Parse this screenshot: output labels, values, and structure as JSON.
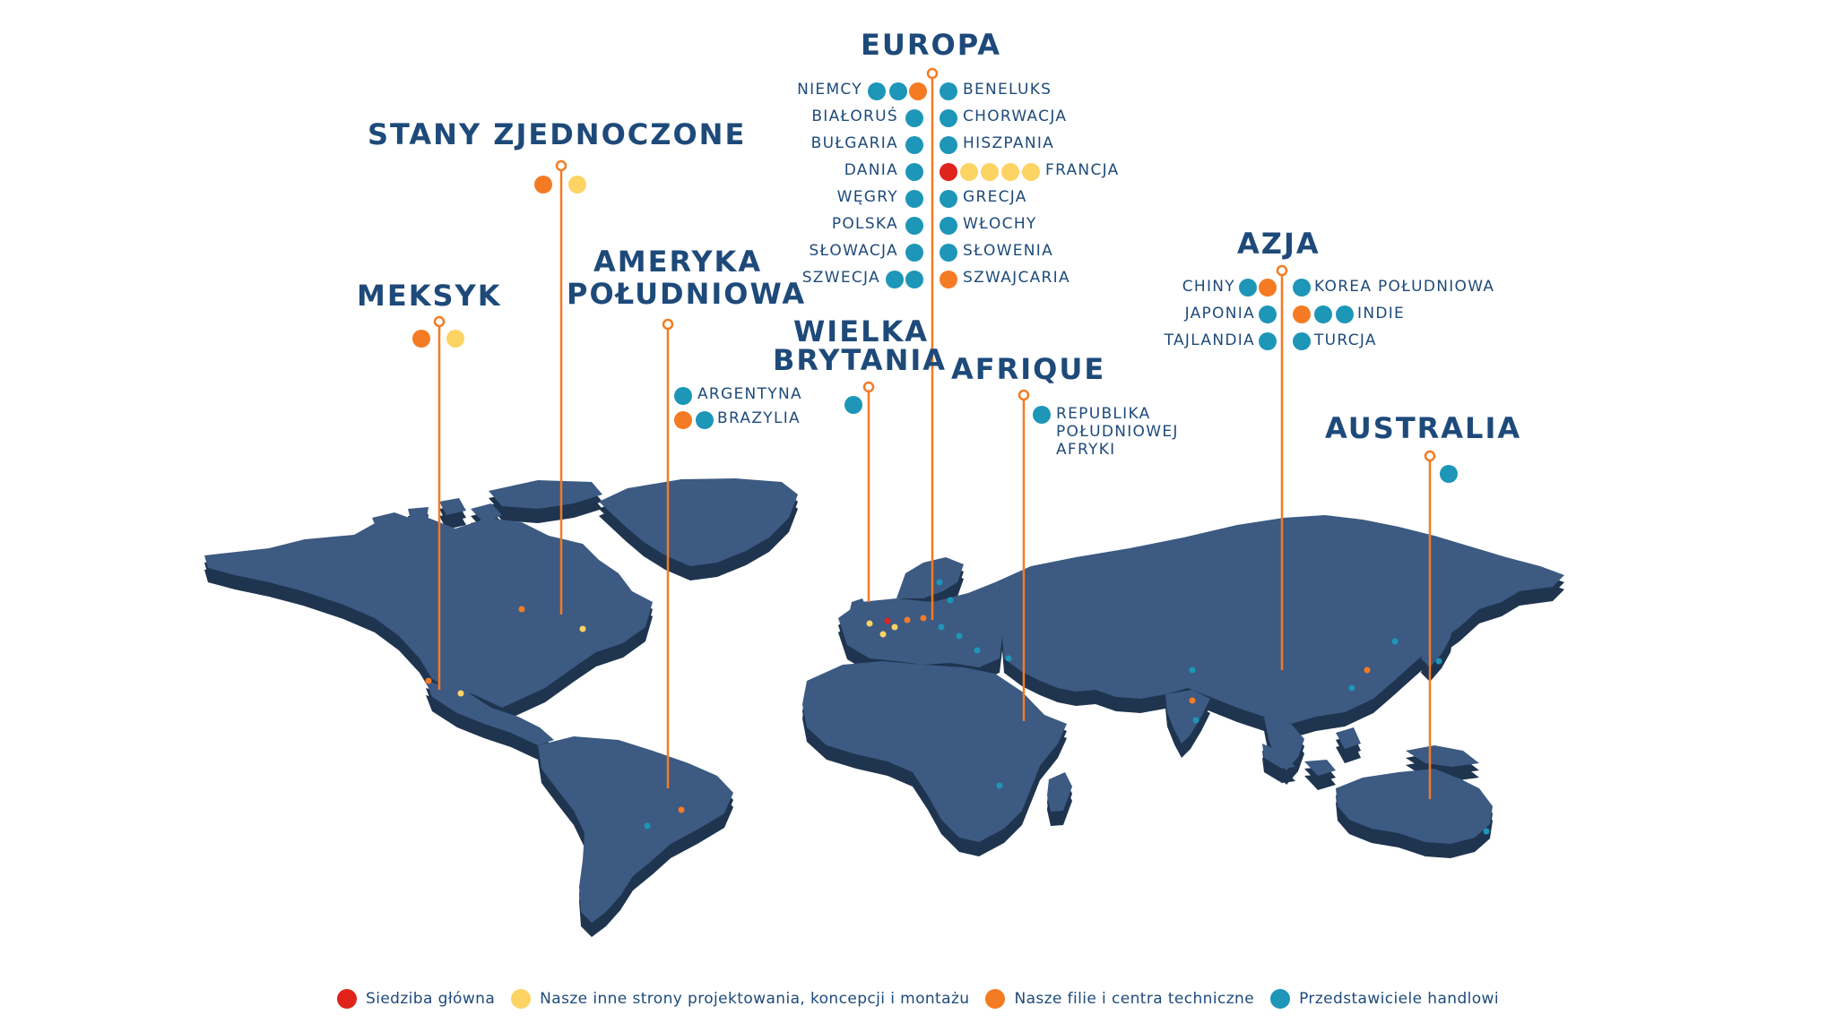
{
  "colors": {
    "land_top": "#3c5a82",
    "land_side": "#1f344f",
    "pin": "#f47b23",
    "text": "#1e4a7a",
    "red": "#e0241b",
    "yellow": "#fdd363",
    "orange": "#f47b23",
    "blue": "#1d96b8"
  },
  "regions": {
    "europa": {
      "title": "EUROPA",
      "countries": [
        {
          "name": "NIEMCY",
          "dots": [
            "blue",
            "blue",
            "orange"
          ]
        },
        {
          "name": "BIAŁORUŚ",
          "dots": [
            "blue"
          ]
        },
        {
          "name": "BUŁGARIA",
          "dots": [
            "blue"
          ]
        },
        {
          "name": "DANIA",
          "dots": [
            "blue"
          ]
        },
        {
          "name": "WĘGRY",
          "dots": [
            "blue"
          ]
        },
        {
          "name": "POLSKA",
          "dots": [
            "blue"
          ]
        },
        {
          "name": "SŁOWACJA",
          "dots": [
            "blue"
          ]
        },
        {
          "name": "SZWECJA",
          "dots": [
            "blue",
            "blue"
          ]
        },
        {
          "name": "BENELUKS",
          "dots": [
            "blue"
          ]
        },
        {
          "name": "CHORWACJA",
          "dots": [
            "blue"
          ]
        },
        {
          "name": "HISZPANIA",
          "dots": [
            "blue"
          ]
        },
        {
          "name": "FRANCJA",
          "dots": [
            "red",
            "yellow",
            "yellow",
            "yellow",
            "yellow"
          ]
        },
        {
          "name": "GRECJA",
          "dots": [
            "blue"
          ]
        },
        {
          "name": "WŁOCHY",
          "dots": [
            "blue"
          ]
        },
        {
          "name": "SŁOWENIA",
          "dots": [
            "blue"
          ]
        },
        {
          "name": "SZWAJCARIA",
          "dots": [
            "orange"
          ]
        }
      ]
    },
    "usa": {
      "title": "STANY ZJEDNOCZONE",
      "dots": [
        "orange",
        "yellow"
      ]
    },
    "mexico": {
      "title": "MEKSYK",
      "dots": [
        "orange",
        "yellow"
      ]
    },
    "south_america": {
      "title_line1": "AMERYKA",
      "title_line2": "POŁUDNIOWA",
      "countries": [
        {
          "name": "ARGENTYNA",
          "dots": [
            "blue"
          ]
        },
        {
          "name": "BRAZYLIA",
          "dots": [
            "orange",
            "blue"
          ]
        }
      ]
    },
    "uk": {
      "title_line1": "WIELKA",
      "title_line2": "BRYTANIA",
      "dots": [
        "blue"
      ]
    },
    "africa": {
      "title": "AFRIQUE",
      "country_lines": [
        "REPUBLIKA",
        "POŁUDNIOWEJ",
        "AFRYKI"
      ],
      "dots": [
        "blue"
      ]
    },
    "asia": {
      "title": "AZJA",
      "countries": [
        {
          "name": "CHINY",
          "dots": [
            "blue",
            "orange"
          ]
        },
        {
          "name": "JAPONIA",
          "dots": [
            "blue"
          ]
        },
        {
          "name": "TAJLANDIA",
          "dots": [
            "blue"
          ]
        },
        {
          "name": "KOREA POŁUDNIOWA",
          "dots": [
            "blue"
          ]
        },
        {
          "name": "INDIE",
          "dots": [
            "orange",
            "blue",
            "blue"
          ]
        },
        {
          "name": "TURCJA",
          "dots": [
            "blue"
          ]
        }
      ]
    },
    "australia": {
      "title": "AUSTRALIA",
      "dots": [
        "blue"
      ]
    }
  },
  "legend": [
    {
      "color": "red",
      "label": "Siedziba główna"
    },
    {
      "color": "yellow",
      "label": "Nasze inne strony projektowania, koncepcji i montażu"
    },
    {
      "color": "orange",
      "label": "Nasze filie i centra techniczne"
    },
    {
      "color": "blue",
      "label": "Przedstawiciele handlowi"
    }
  ]
}
